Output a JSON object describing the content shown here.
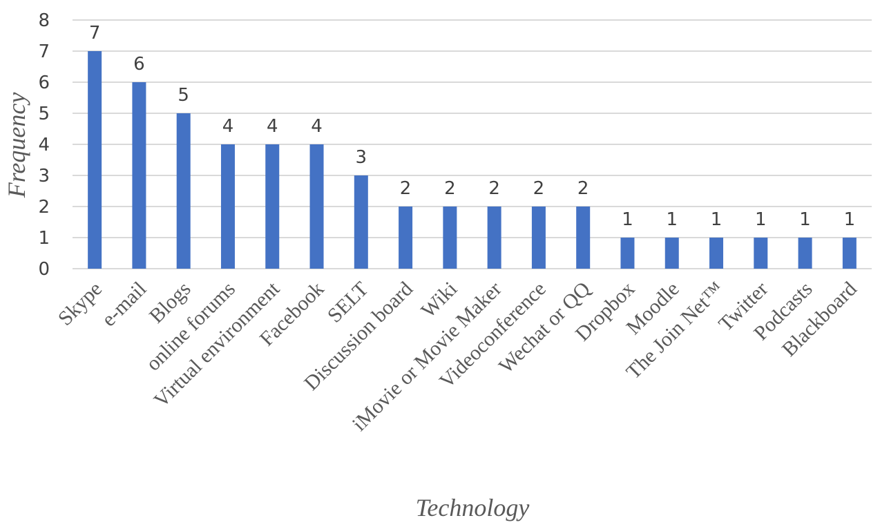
{
  "chart_data": {
    "type": "bar",
    "categories": [
      "Skype",
      "e-mail",
      "Blogs",
      "online forums",
      "Virtual environment",
      "Facebook",
      "SELT",
      "Discussion board",
      "Wiki",
      "iMovie or Movie Maker",
      "Videoconference",
      "Wechat or QQ",
      "Dropbox",
      "Moodle",
      "The Join Net™",
      "Twitter",
      "Podcasts",
      "Blackboard"
    ],
    "values": [
      7,
      6,
      5,
      4,
      4,
      4,
      3,
      2,
      2,
      2,
      2,
      2,
      1,
      1,
      1,
      1,
      1,
      1
    ],
    "xlabel": "Technology",
    "ylabel": "Frequency",
    "ylim": [
      0,
      8
    ],
    "yticks": [
      0,
      1,
      2,
      3,
      4,
      5,
      6,
      7,
      8
    ],
    "data_labels": true,
    "grid": true,
    "bar_color": "#4472C4"
  }
}
